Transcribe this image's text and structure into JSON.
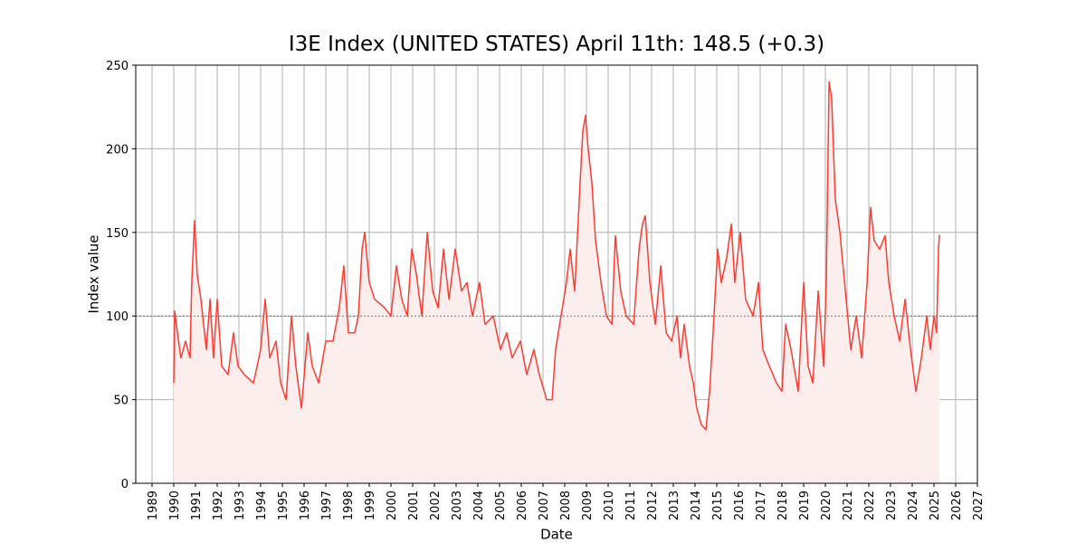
{
  "chart_data": {
    "type": "line",
    "title": "I3E Index (UNITED STATES) April 11th: 148.5 (+0.3)",
    "xlabel": "Date",
    "ylabel": "Index value",
    "color": "#ff3b30",
    "fill_color": "#fdeeee",
    "grid": true,
    "reference_line": 100,
    "xlim": [
      1988.25,
      2027.0
    ],
    "xticks": [
      1989,
      1990,
      1991,
      1992,
      1993,
      1994,
      1995,
      1996,
      1997,
      1998,
      1999,
      2000,
      2001,
      2002,
      2003,
      2004,
      2005,
      2006,
      2007,
      2008,
      2009,
      2010,
      2011,
      2012,
      2013,
      2014,
      2015,
      2016,
      2017,
      2018,
      2019,
      2020,
      2021,
      2022,
      2023,
      2024,
      2025,
      2026,
      2027
    ],
    "ylim": [
      0,
      250
    ],
    "yticks": [
      0,
      50,
      100,
      150,
      200,
      250
    ],
    "x": [
      1990.0,
      1990.04,
      1990.17,
      1990.33,
      1990.54,
      1990.75,
      1990.83,
      1990.96,
      1991.08,
      1991.25,
      1991.5,
      1991.67,
      1991.83,
      1992.0,
      1992.21,
      1992.5,
      1992.75,
      1992.96,
      1993.25,
      1993.67,
      1994.0,
      1994.21,
      1994.42,
      1994.71,
      1994.92,
      1995.17,
      1995.42,
      1995.62,
      1995.88,
      1996.17,
      1996.38,
      1996.67,
      1997.0,
      1997.33,
      1997.62,
      1997.83,
      1998.04,
      1998.33,
      1998.5,
      1998.67,
      1998.79,
      1999.0,
      1999.25,
      1999.71,
      2000.0,
      2000.25,
      2000.5,
      2000.75,
      2000.96,
      2001.17,
      2001.42,
      2001.67,
      2001.92,
      2002.17,
      2002.42,
      2002.67,
      2002.96,
      2003.25,
      2003.5,
      2003.75,
      2004.08,
      2004.33,
      2004.71,
      2005.04,
      2005.33,
      2005.58,
      2005.96,
      2006.25,
      2006.58,
      2006.83,
      2007.17,
      2007.42,
      2007.58,
      2007.83,
      2008.08,
      2008.25,
      2008.46,
      2008.67,
      2008.83,
      2008.96,
      2009.08,
      2009.25,
      2009.42,
      2009.67,
      2009.92,
      2010.17,
      2010.33,
      2010.58,
      2010.83,
      2011.17,
      2011.42,
      2011.58,
      2011.71,
      2011.92,
      2012.17,
      2012.42,
      2012.67,
      2012.92,
      2013.17,
      2013.33,
      2013.5,
      2013.75,
      2013.92,
      2014.08,
      2014.29,
      2014.5,
      2014.67,
      2014.83,
      2015.04,
      2015.21,
      2015.46,
      2015.67,
      2015.83,
      2016.08,
      2016.33,
      2016.67,
      2016.92,
      2017.12,
      2017.42,
      2017.75,
      2018.0,
      2018.17,
      2018.42,
      2018.75,
      2019.0,
      2019.21,
      2019.42,
      2019.67,
      2019.92,
      2020.04,
      2020.17,
      2020.29,
      2020.46,
      2020.67,
      2020.96,
      2021.17,
      2021.42,
      2021.67,
      2021.92,
      2022.08,
      2022.25,
      2022.5,
      2022.75,
      2022.92,
      2023.17,
      2023.42,
      2023.67,
      2023.92,
      2024.17,
      2024.42,
      2024.67,
      2024.83,
      2025.0,
      2025.12,
      2025.21,
      2025.25
    ],
    "values": [
      60,
      103,
      90,
      75,
      85,
      75,
      120,
      157,
      125,
      110,
      80,
      110,
      75,
      110,
      70,
      65,
      90,
      70,
      65,
      60,
      80,
      110,
      75,
      85,
      60,
      50,
      100,
      70,
      45,
      90,
      70,
      60,
      85,
      85,
      105,
      130,
      90,
      90,
      100,
      140,
      150,
      120,
      110,
      105,
      100,
      130,
      110,
      100,
      140,
      125,
      100,
      150,
      115,
      105,
      140,
      110,
      140,
      115,
      120,
      100,
      120,
      95,
      100,
      80,
      90,
      75,
      85,
      65,
      80,
      65,
      50,
      50,
      80,
      100,
      120,
      140,
      115,
      170,
      210,
      220,
      200,
      180,
      145,
      120,
      100,
      95,
      148,
      115,
      100,
      95,
      140,
      155,
      160,
      120,
      95,
      130,
      90,
      85,
      100,
      75,
      95,
      70,
      60,
      45,
      35,
      32,
      55,
      90,
      140,
      120,
      135,
      155,
      120,
      150,
      110,
      100,
      120,
      80,
      70,
      60,
      55,
      95,
      80,
      55,
      120,
      70,
      60,
      115,
      70,
      120,
      240,
      230,
      170,
      150,
      110,
      80,
      100,
      75,
      120,
      165,
      145,
      140,
      148,
      120,
      100,
      85,
      110,
      80,
      55,
      75,
      100,
      80,
      100,
      90,
      140,
      148.5
    ]
  }
}
